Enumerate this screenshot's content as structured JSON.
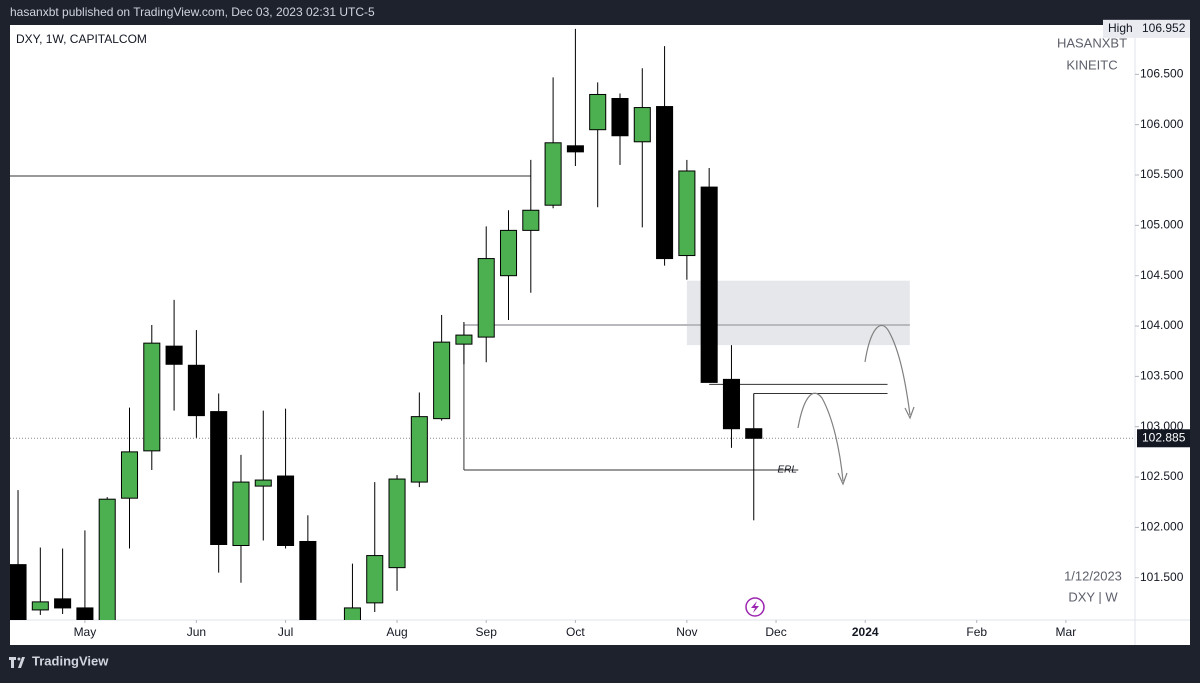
{
  "header": "hasanxbt published on TradingView.com, Dec 03, 2023 02:31 UTC-5",
  "footer": "TradingView",
  "watermark": [
    "HASANXBT",
    "KINEITC"
  ],
  "notes": [
    "1/12/2023",
    "DXY | W"
  ],
  "chart_data": {
    "type": "candlestick",
    "title": "DXY, 1W, CAPITALCOM",
    "up_color": "#4caf50",
    "down_color": "#000000",
    "x": [
      0,
      1,
      2,
      3,
      4,
      5,
      6,
      7,
      8,
      9,
      10,
      11,
      12,
      13,
      15,
      16,
      17,
      18,
      19,
      20,
      21,
      22,
      23,
      24,
      25,
      26,
      27,
      28,
      29,
      30,
      31,
      32,
      33
    ],
    "open": [
      101.63,
      101.18,
      101.29,
      101.2,
      100.95,
      102.29,
      102.76,
      103.8,
      103.61,
      103.15,
      101.82,
      102.41,
      102.51,
      101.86,
      101.05,
      101.25,
      101.6,
      102.45,
      103.08,
      103.82,
      103.89,
      104.5,
      104.95,
      105.2,
      105.79,
      105.95,
      106.26,
      105.83,
      106.18,
      104.7,
      105.38,
      103.47,
      102.98
    ],
    "high": [
      102.37,
      101.8,
      101.79,
      101.97,
      102.3,
      103.19,
      104.01,
      104.26,
      103.96,
      103.33,
      102.72,
      103.16,
      103.18,
      102.12,
      101.64,
      102.45,
      102.52,
      103.34,
      104.11,
      104.04,
      104.99,
      105.15,
      105.65,
      106.47,
      106.952,
      106.42,
      106.31,
      106.56,
      106.78,
      105.65,
      105.57,
      103.81,
      103.33
    ],
    "low": [
      100.9,
      101.13,
      101.14,
      100.9,
      100.9,
      101.79,
      102.57,
      103.16,
      102.89,
      101.55,
      101.45,
      101.87,
      101.79,
      100.9,
      100.95,
      101.16,
      101.37,
      102.4,
      103.06,
      103.62,
      103.64,
      104.06,
      104.33,
      105.17,
      105.59,
      105.18,
      105.6,
      104.98,
      104.6,
      104.46,
      103.44,
      102.79,
      102.07
    ],
    "close": [
      101.05,
      101.26,
      101.2,
      101.0,
      102.28,
      102.75,
      103.83,
      103.62,
      103.11,
      101.83,
      102.45,
      102.47,
      101.82,
      100.95,
      101.2,
      101.72,
      102.48,
      103.1,
      103.84,
      103.91,
      104.67,
      104.95,
      105.15,
      105.82,
      105.73,
      106.3,
      105.89,
      106.17,
      104.67,
      105.54,
      103.44,
      102.98,
      102.885
    ],
    "high_label": "High",
    "xlim": [
      -0.36,
      50.1
    ],
    "ylim": [
      101.08,
      106.99
    ],
    "yticks": [
      {
        "value": 101.5,
        "label": "101.500"
      },
      {
        "value": 102,
        "label": "102.000"
      },
      {
        "value": 102.5,
        "label": "102.500"
      },
      {
        "value": 103,
        "label": "103.000"
      },
      {
        "value": 103.5,
        "label": "103.500"
      },
      {
        "value": 104,
        "label": "104.000"
      },
      {
        "value": 104.5,
        "label": "104.500"
      },
      {
        "value": 105,
        "label": "105.000"
      },
      {
        "value": 105.5,
        "label": "105.500"
      },
      {
        "value": 106,
        "label": "106.000"
      },
      {
        "value": 106.5,
        "label": "106.500"
      }
    ],
    "xticks": [
      {
        "value": 3,
        "label": "May"
      },
      {
        "value": 8,
        "label": "Jun"
      },
      {
        "value": 12,
        "label": "Jul"
      },
      {
        "value": 17,
        "label": "Aug"
      },
      {
        "value": 21,
        "label": "Sep"
      },
      {
        "value": 25,
        "label": "Oct"
      },
      {
        "value": 30,
        "label": "Nov"
      },
      {
        "value": 34,
        "label": "Dec"
      },
      {
        "value": 38,
        "label": "2024"
      },
      {
        "value": 43,
        "label": "Feb"
      },
      {
        "value": 47,
        "label": "Mar"
      }
    ],
    "zone": {
      "x": [
        30,
        40
      ],
      "y": [
        103.81,
        104.45
      ]
    },
    "zone_line": {
      "x": [
        20,
        40
      ],
      "y": [
        104.01,
        104.01
      ]
    },
    "lines": [
      {
        "x": [
          -0.36,
          23
        ],
        "y": [
          105.49,
          105.49
        ]
      },
      {
        "x": [
          31,
          39
        ],
        "y": [
          103.42,
          103.42
        ]
      },
      {
        "x": [
          33,
          39
        ],
        "y": [
          103.33,
          103.33
        ]
      },
      {
        "x": [
          20,
          20
        ],
        "y": [
          104.01,
          102.57
        ]
      },
      {
        "x": [
          20,
          35
        ],
        "y": [
          102.57,
          102.57
        ]
      }
    ],
    "erl": {
      "label": "ERL",
      "x": 34.5,
      "y": 102.57
    }
  }
}
